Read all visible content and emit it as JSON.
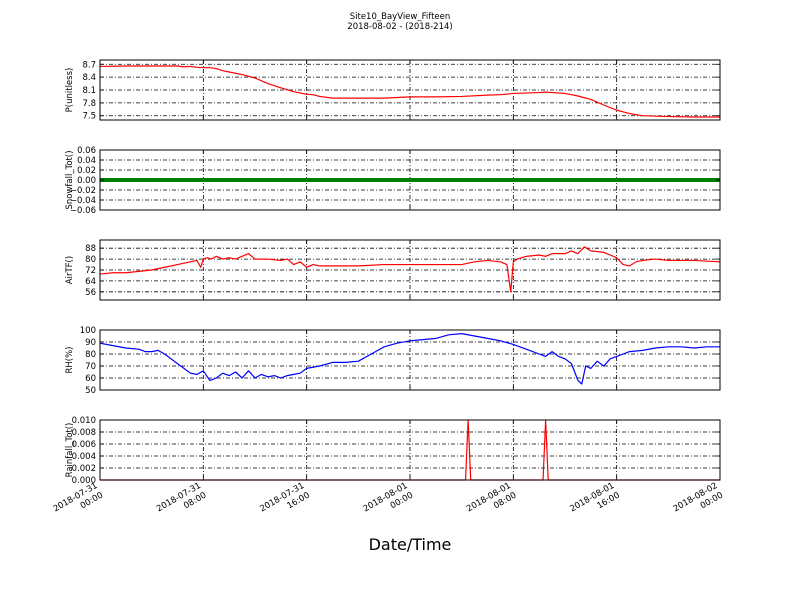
{
  "figure": {
    "title_line1": "Site10_BayView_Fifteen",
    "title_line2": "2018-08-02 - (2018-214)",
    "xlabel": "Date/Time"
  },
  "chart_data": [
    {
      "type": "line",
      "ylabel": "P(unitless)",
      "color": "#ff0000",
      "xlim": [
        0,
        48
      ],
      "ylim": [
        7.4,
        8.8
      ],
      "yticks": [
        7.5,
        7.8,
        8.1,
        8.4,
        8.7
      ],
      "ytick_labels": [
        "7.5",
        "7.8",
        "8.1",
        "8.4",
        "8.7"
      ],
      "grid": true,
      "x": [
        0,
        2,
        4,
        6,
        6.5,
        7,
        7.5,
        8,
        8.5,
        9,
        9.5,
        10,
        11,
        12,
        13,
        14,
        15,
        16,
        16.5,
        17,
        18,
        20,
        22,
        24,
        26,
        28,
        30,
        31,
        32,
        34,
        34.5,
        35,
        36,
        36.5,
        37,
        38,
        39,
        40,
        41,
        42,
        44,
        46,
        48
      ],
      "values": [
        8.65,
        8.66,
        8.66,
        8.66,
        8.64,
        8.65,
        8.63,
        8.62,
        8.62,
        8.6,
        8.55,
        8.52,
        8.46,
        8.38,
        8.25,
        8.15,
        8.06,
        8.0,
        7.99,
        7.95,
        7.91,
        7.91,
        7.91,
        7.94,
        7.94,
        7.95,
        7.98,
        7.99,
        8.02,
        8.04,
        8.05,
        8.04,
        8.02,
        7.99,
        7.96,
        7.88,
        7.75,
        7.63,
        7.55,
        7.5,
        7.48,
        7.47,
        7.47
      ]
    },
    {
      "type": "line",
      "ylabel": "Snowfall_Tot()",
      "color": "#008000",
      "xlim": [
        0,
        48
      ],
      "ylim": [
        -0.06,
        0.06
      ],
      "yticks": [
        -0.06,
        -0.04,
        -0.02,
        0.0,
        0.02,
        0.04,
        0.06
      ],
      "ytick_labels": [
        "−0.06",
        "−0.04",
        "−0.02",
        "0.00",
        "0.02",
        "0.04",
        "0.06"
      ],
      "grid": true,
      "x": [
        0,
        48
      ],
      "values": [
        0,
        0
      ]
    },
    {
      "type": "line",
      "ylabel": "AirTF()",
      "color": "#ff0000",
      "xlim": [
        0,
        48
      ],
      "ylim": [
        50,
        94
      ],
      "yticks": [
        56,
        64,
        72,
        80,
        88
      ],
      "ytick_labels": [
        "56",
        "64",
        "72",
        "80",
        "88"
      ],
      "grid": true,
      "x": [
        0,
        1,
        2,
        3,
        4,
        5,
        6,
        7,
        7.5,
        7.8,
        8,
        8.3,
        8.6,
        9,
        9.5,
        10,
        10.5,
        11,
        11.5,
        12,
        13,
        14,
        14.5,
        15,
        15.5,
        16,
        16.5,
        17,
        18,
        20,
        22,
        24,
        26,
        28,
        29,
        30,
        31,
        31.5,
        31.8,
        32,
        32.3,
        33,
        34,
        34.5,
        35,
        36,
        36.5,
        37,
        37.5,
        38,
        39,
        39.5,
        40,
        40.5,
        41,
        41.5,
        42,
        43,
        44,
        46,
        48
      ],
      "values": [
        69,
        70,
        70,
        71,
        72,
        74,
        76,
        78,
        79,
        74,
        80,
        81,
        80,
        82,
        80,
        81,
        80,
        82,
        84,
        80,
        80,
        79,
        80,
        76,
        78,
        74,
        76,
        75,
        75,
        75,
        76,
        76,
        76,
        76,
        78,
        79,
        78,
        76,
        56,
        78,
        80,
        82,
        83,
        82,
        84,
        84,
        86,
        84,
        89,
        86,
        85,
        83,
        81,
        76,
        75,
        78,
        79,
        80,
        79,
        79,
        78
      ]
    },
    {
      "type": "line",
      "ylabel": "RH(%)",
      "color": "#0000ff",
      "xlim": [
        0,
        48
      ],
      "ylim": [
        50,
        100
      ],
      "yticks": [
        50,
        60,
        70,
        80,
        90,
        100
      ],
      "ytick_labels": [
        "50",
        "60",
        "70",
        "80",
        "90",
        "100"
      ],
      "grid": true,
      "x": [
        0,
        1,
        2,
        3,
        3.5,
        4,
        4.5,
        5,
        5.5,
        6,
        6.5,
        7,
        7.5,
        8,
        8.5,
        9,
        9.5,
        10,
        10.5,
        11,
        11.5,
        12,
        12.5,
        13,
        13.5,
        14,
        14.5,
        15,
        15.5,
        16,
        17,
        18,
        19,
        20,
        21,
        22,
        23,
        24,
        25,
        26,
        27,
        28,
        29,
        30,
        31,
        32,
        33,
        34,
        34.5,
        35,
        35.5,
        36,
        36.5,
        37,
        37.3,
        37.6,
        38,
        38.5,
        39,
        39.5,
        40,
        40.5,
        41,
        42,
        43,
        44,
        45,
        46,
        47,
        48
      ],
      "values": [
        89,
        87,
        85,
        84,
        82,
        82,
        83,
        80,
        76,
        72,
        68,
        64,
        63,
        66,
        58,
        60,
        64,
        62,
        65,
        60,
        66,
        60,
        63,
        61,
        62,
        60,
        62,
        63,
        64,
        68,
        70,
        73,
        73,
        74,
        80,
        86,
        89,
        91,
        92,
        93,
        96,
        97,
        95,
        93,
        91,
        88,
        84,
        80,
        78,
        82,
        78,
        76,
        72,
        58,
        55,
        70,
        68,
        74,
        70,
        76,
        78,
        80,
        82,
        83,
        85,
        86,
        86,
        85,
        86,
        86
      ]
    },
    {
      "type": "line",
      "ylabel": "Rainfall_Tot()",
      "color": "#ff0000",
      "xlim": [
        0,
        48
      ],
      "ylim": [
        0,
        0.01
      ],
      "yticks": [
        0.0,
        0.002,
        0.004,
        0.006,
        0.008,
        0.01
      ],
      "ytick_labels": [
        "0.000",
        "0.002",
        "0.004",
        "0.006",
        "0.008",
        "0.010"
      ],
      "grid": true,
      "x": [
        0,
        28.3,
        28.5,
        28.7,
        34.3,
        34.5,
        34.7,
        48
      ],
      "values": [
        0,
        0,
        0.01,
        0,
        0,
        0.01,
        0,
        0
      ]
    }
  ],
  "x_axis": {
    "ticks": [
      0,
      8,
      16,
      24,
      32,
      40,
      48
    ],
    "tick_labels": [
      [
        "2018-07-31",
        "00:00"
      ],
      [
        "2018-07-31",
        "08:00"
      ],
      [
        "2018-07-31",
        "16:00"
      ],
      [
        "2018-08-01",
        "00:00"
      ],
      [
        "2018-08-01",
        "08:00"
      ],
      [
        "2018-08-01",
        "16:00"
      ],
      [
        "2018-08-02",
        "00:00"
      ]
    ]
  }
}
